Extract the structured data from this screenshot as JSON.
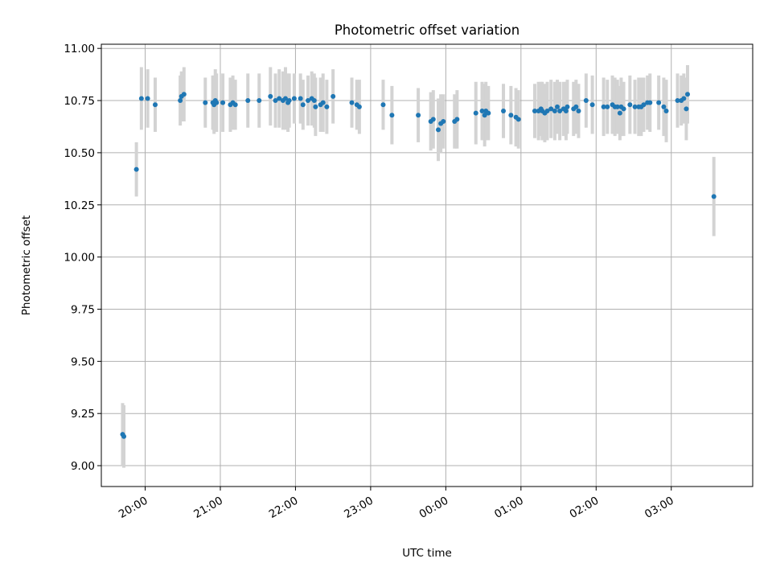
{
  "chart_data": {
    "type": "scatter",
    "title": "Photometric offset variation",
    "xlabel": "UTC time",
    "ylabel": "Photometric offset",
    "ylim": [
      8.9,
      11.02
    ],
    "xlim": [
      "19:25",
      "04:05"
    ],
    "x_axis_type": "time",
    "grid": true,
    "x_ticks": [
      "20:00",
      "21:00",
      "22:00",
      "23:00",
      "00:00",
      "01:00",
      "02:00",
      "03:00"
    ],
    "y_ticks": [
      "9.00",
      "9.25",
      "9.50",
      "9.75",
      "10.00",
      "10.25",
      "10.50",
      "10.75",
      "11.00"
    ],
    "marker_color": "#1f77b4",
    "errorbar_color": "#d3d3d3",
    "series": [
      {
        "x": [
          "19:42",
          "19:43",
          "19:53",
          "19:57",
          "20:02",
          "20:08",
          "20:28",
          "20:29",
          "20:31",
          "20:48",
          "20:54",
          "20:55",
          "20:56",
          "20:57",
          "21:02",
          "21:08",
          "21:10",
          "21:12",
          "21:22",
          "21:31",
          "21:40",
          "21:44",
          "21:47",
          "21:50",
          "21:52",
          "21:54",
          "21:55",
          "21:59",
          "22:04",
          "22:06",
          "22:10",
          "22:13",
          "22:15",
          "22:16",
          "22:20",
          "22:22",
          "22:25",
          "22:30",
          "22:45",
          "22:49",
          "22:51",
          "23:10",
          "23:17",
          "23:38",
          "23:48",
          "23:50",
          "23:54",
          "23:56",
          "23:58",
          "00:07",
          "00:09",
          "00:24",
          "00:29",
          "00:31",
          "00:32",
          "00:34",
          "00:46",
          "00:52",
          "00:56",
          "00:58",
          "01:11",
          "01:14",
          "01:16",
          "01:17",
          "01:19",
          "01:21",
          "01:24",
          "01:27",
          "01:29",
          "01:31",
          "01:34",
          "01:36",
          "01:37",
          "01:42",
          "01:44",
          "01:46",
          "01:52",
          "01:57",
          "02:06",
          "02:09",
          "02:13",
          "02:15",
          "02:17",
          "02:19",
          "02:20",
          "02:22",
          "02:27",
          "02:31",
          "02:34",
          "02:36",
          "02:38",
          "02:41",
          "02:43",
          "02:50",
          "02:54",
          "02:56",
          "03:05",
          "03:08",
          "03:10",
          "03:12",
          "03:13",
          "03:34"
        ],
        "y": [
          9.15,
          9.14,
          10.42,
          10.76,
          10.76,
          10.73,
          10.75,
          10.77,
          10.78,
          10.74,
          10.74,
          10.73,
          10.75,
          10.74,
          10.74,
          10.73,
          10.74,
          10.73,
          10.75,
          10.75,
          10.77,
          10.75,
          10.76,
          10.75,
          10.76,
          10.74,
          10.75,
          10.76,
          10.76,
          10.73,
          10.75,
          10.76,
          10.75,
          10.72,
          10.73,
          10.74,
          10.72,
          10.77,
          10.74,
          10.73,
          10.72,
          10.73,
          10.68,
          10.68,
          10.65,
          10.66,
          10.61,
          10.64,
          10.65,
          10.65,
          10.66,
          10.69,
          10.7,
          10.68,
          10.7,
          10.69,
          10.7,
          10.68,
          10.67,
          10.66,
          10.7,
          10.7,
          10.71,
          10.7,
          10.69,
          10.7,
          10.71,
          10.7,
          10.72,
          10.7,
          10.71,
          10.7,
          10.72,
          10.71,
          10.72,
          10.7,
          10.75,
          10.73,
          10.72,
          10.72,
          10.73,
          10.72,
          10.72,
          10.69,
          10.72,
          10.71,
          10.73,
          10.72,
          10.72,
          10.72,
          10.73,
          10.74,
          10.74,
          10.74,
          10.72,
          10.7,
          10.75,
          10.75,
          10.76,
          10.71,
          10.78,
          10.29
        ],
        "yerr": [
          0.15,
          0.15,
          0.13,
          0.15,
          0.14,
          0.13,
          0.12,
          0.12,
          0.13,
          0.12,
          0.13,
          0.14,
          0.15,
          0.14,
          0.14,
          0.13,
          0.13,
          0.12,
          0.13,
          0.13,
          0.14,
          0.13,
          0.14,
          0.14,
          0.15,
          0.14,
          0.13,
          0.12,
          0.12,
          0.12,
          0.12,
          0.13,
          0.13,
          0.14,
          0.13,
          0.14,
          0.13,
          0.13,
          0.12,
          0.12,
          0.13,
          0.12,
          0.14,
          0.13,
          0.14,
          0.14,
          0.15,
          0.14,
          0.13,
          0.13,
          0.14,
          0.15,
          0.14,
          0.15,
          0.14,
          0.13,
          0.13,
          0.14,
          0.14,
          0.14,
          0.13,
          0.14,
          0.13,
          0.14,
          0.14,
          0.14,
          0.14,
          0.14,
          0.13,
          0.14,
          0.13,
          0.14,
          0.13,
          0.13,
          0.13,
          0.13,
          0.13,
          0.14,
          0.14,
          0.13,
          0.14,
          0.14,
          0.13,
          0.13,
          0.14,
          0.13,
          0.14,
          0.13,
          0.14,
          0.14,
          0.13,
          0.13,
          0.14,
          0.13,
          0.14,
          0.15,
          0.13,
          0.12,
          0.12,
          0.15,
          0.14,
          0.19
        ]
      }
    ]
  }
}
